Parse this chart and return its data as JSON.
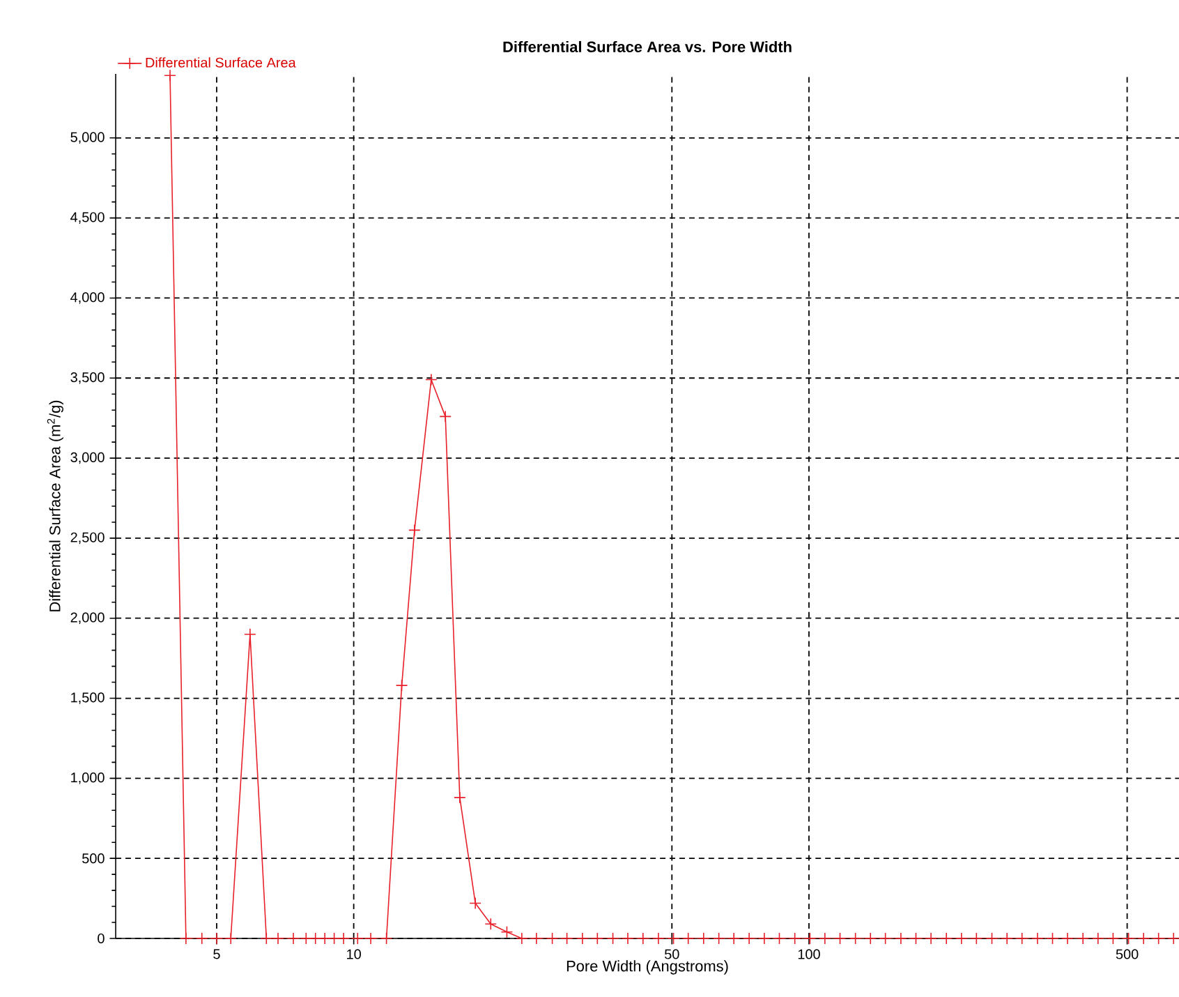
{
  "chart_data": {
    "type": "line",
    "title": "Differential Surface Area vs. Pore Width",
    "xlabel": "Pore Width (Angstroms)",
    "ylabel": "Differential Surface Area (m$^{2}$/g)",
    "log": "x",
    "grid": true,
    "legend": "top left",
    "marker": "cross",
    "line_style": "solid",
    "xlim": [
      3,
      650
    ],
    "xticks": [
      5,
      10,
      50,
      100,
      500
    ],
    "ylim": [
      0,
      5400
    ],
    "yticks": [
      {
        "value": 0,
        "label": "0"
      },
      {
        "value": 500,
        "label": "500"
      },
      {
        "value": 1000,
        "label": "1,000"
      },
      {
        "value": 1500,
        "label": "1,500"
      },
      {
        "value": 2000,
        "label": "2,000"
      },
      {
        "value": 2500,
        "label": "2,500"
      },
      {
        "value": 3000,
        "label": "3,000"
      },
      {
        "value": 3500,
        "label": "3,500"
      },
      {
        "value": 4000,
        "label": "4,000"
      },
      {
        "value": 4500,
        "label": "4,500"
      },
      {
        "value": 5000,
        "label": "5,000"
      }
    ],
    "series": [
      {
        "name": "Differential Surface Area",
        "color": "#e8202a",
        "x": [
          3.95,
          4.28,
          4.64,
          5.0,
          5.37,
          5.92,
          6.43,
          6.82,
          7.37,
          7.86,
          8.24,
          8.64,
          9.06,
          9.5,
          10.2,
          10.9,
          11.8,
          12.75,
          13.6,
          14.8,
          15.9,
          17.1,
          18.5,
          20.0,
          21.7,
          23.4,
          25.2,
          27.3,
          29.4,
          31.8,
          34.3,
          37.1,
          40.0,
          43.2,
          46.7,
          50.4,
          54.3,
          58.7,
          63.4,
          68.4,
          73.9,
          79.8,
          86.1,
          93.1,
          100.5,
          108.4,
          117,
          126.5,
          136.5,
          147.2,
          159.2,
          171.8,
          185.4,
          200.4,
          216.3,
          233.3,
          252.3,
          272.3,
          293.8,
          317.7,
          342.8,
          369.8,
          399.9,
          431.5,
          465.6,
          503.5,
          543.3,
          586.1,
          632.4
        ],
        "values": [
          5390,
          0,
          0,
          0,
          0,
          1900,
          0,
          0,
          0,
          0,
          0,
          0,
          0,
          0,
          0,
          0,
          0,
          1580,
          2550,
          3490,
          3260,
          880,
          220,
          90,
          40,
          0,
          0,
          0,
          0,
          0,
          0,
          0,
          0,
          0,
          0,
          0,
          0,
          0,
          0,
          0,
          0,
          0,
          0,
          0,
          0,
          0,
          0,
          0,
          0,
          0,
          0,
          0,
          0,
          0,
          0,
          0,
          0,
          0,
          0,
          0,
          0,
          0,
          0,
          0,
          0,
          0,
          0,
          0,
          0
        ]
      }
    ]
  }
}
